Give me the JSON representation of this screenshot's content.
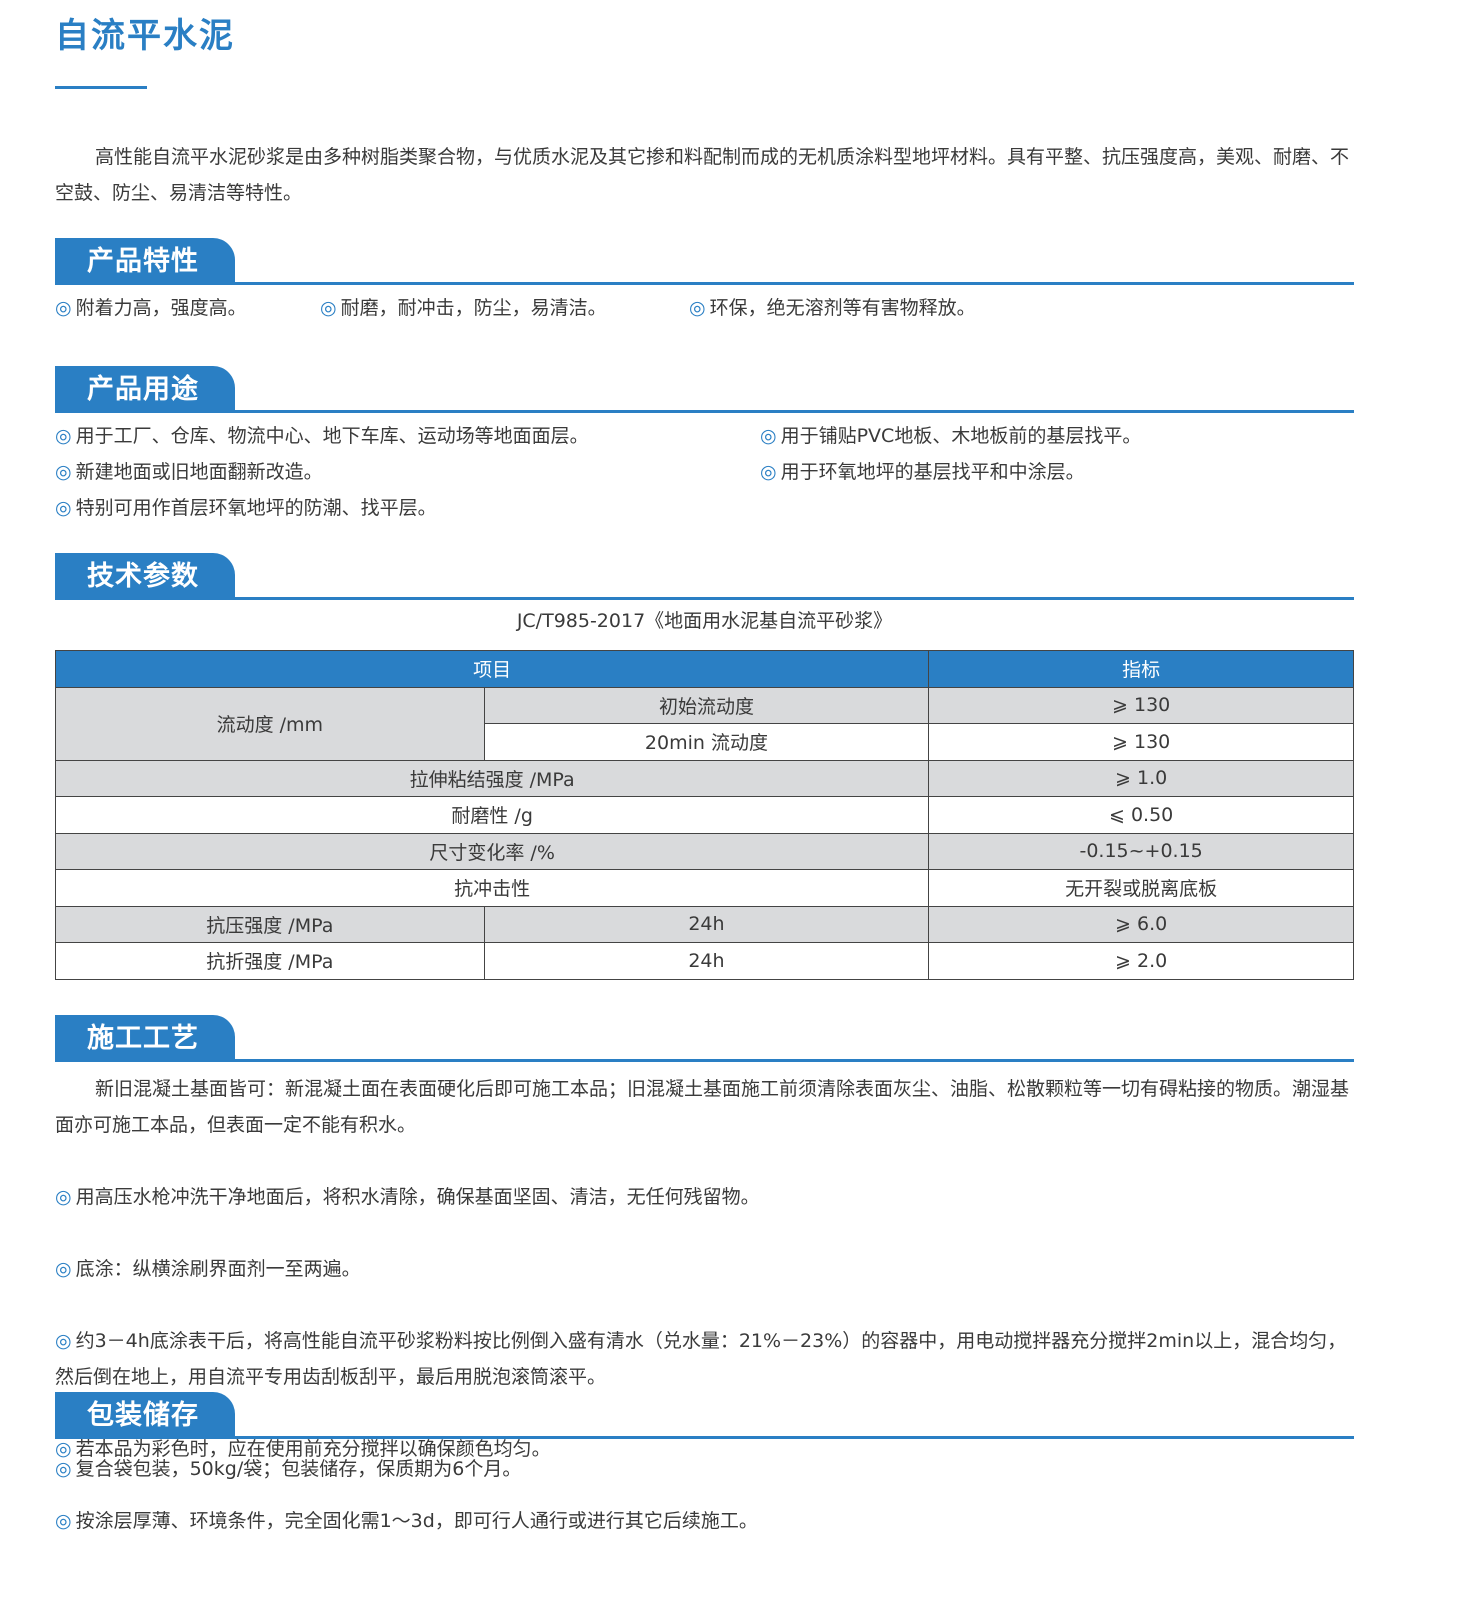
{
  "title": "自流平水泥",
  "intro": "高性能自流平水泥砂浆是由多种树脂类聚合物，与优质水泥及其它掺和料配制而成的无机质涂料型地坪材料。具有平整、抗压强度高，美观、耐磨、不空鼓、防尘、易清洁等特性。",
  "bullet": "◎",
  "features": {
    "heading": "产品特性",
    "items": [
      "附着力高，强度高。",
      "耐磨，耐冲击，防尘，易清洁。",
      "环保，绝无溶剂等有害物释放。"
    ]
  },
  "uses": {
    "heading": "产品用途",
    "items": [
      "用于工厂、仓库、物流中心、地下车库、运动场等地面面层。",
      "用于铺贴PVC地板、木地板前的基层找平。",
      "新建地面或旧地面翻新改造。",
      "用于环氧地坪的基层找平和中涂层。",
      "特别可用作首层环氧地坪的防潮、找平层。"
    ]
  },
  "params": {
    "heading": "技术参数",
    "standard": "JC/T985-2017《地面用水泥基自流平砂浆》",
    "table": {
      "headers": [
        "项目",
        "指标"
      ],
      "rows": [
        {
          "item": "流动度 /mm",
          "sub": "初始流动度",
          "value": "⩾ 130"
        },
        {
          "sub": "20min 流动度",
          "value": "⩾ 130"
        },
        {
          "item": "拉伸粘结强度 /MPa",
          "value": "⩾ 1.0"
        },
        {
          "item": "耐磨性 /g",
          "value": "⩽ 0.50"
        },
        {
          "item": "尺寸变化率 /%",
          "value": "-0.15~+0.15"
        },
        {
          "item": "抗冲击性",
          "value": "无开裂或脱离底板"
        },
        {
          "item": "抗压强度 /MPa",
          "sub": "24h",
          "value": "⩾ 6.0"
        },
        {
          "item": "抗折强度 /MPa",
          "sub": "24h",
          "value": "⩾ 2.0"
        }
      ]
    }
  },
  "process": {
    "heading": "施工工艺",
    "intro": "新旧混凝土基面皆可：新混凝土面在表面硬化后即可施工本品；旧混凝土基面施工前须清除表面灰尘、油脂、松散颗粒等一切有碍粘接的物质。潮湿基面亦可施工本品，但表面一定不能有积水。",
    "items": [
      "用高压水枪冲洗干净地面后，将积水清除，确保基面坚固、清洁，无任何残留物。",
      "底涂：纵横涂刷界面剂一至两遍。",
      "约3－4h底涂表干后，将高性能自流平砂浆粉料按比例倒入盛有清水（兑水量：21%－23%）的容器中，用电动搅拌器充分搅拌2min以上，混合均匀，然后倒在地上，用自流平专用齿刮板刮平，最后用脱泡滚筒滚平。",
      "若本品为彩色时，应在使用前充分搅拌以确保颜色均匀。",
      "按涂层厚薄、环境条件，完全固化需1～3d，即可行人通行或进行其它后续施工。"
    ]
  },
  "storage": {
    "heading": "包装储存",
    "items": [
      "复合袋包装，50kg/袋；包装储存，保质期为6个月。"
    ]
  },
  "colors": {
    "accent": "#2a7fc4",
    "row_gray": "#d9dadc"
  }
}
